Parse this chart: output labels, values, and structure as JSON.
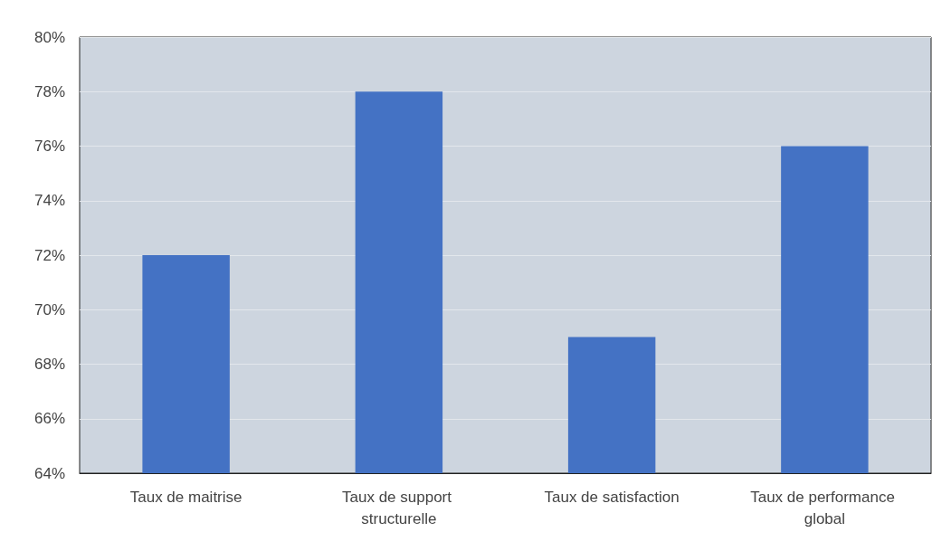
{
  "chart_data": {
    "type": "bar",
    "categories": [
      "Taux de maitrise",
      "Taux de support structurelle",
      "Taux de satisfaction",
      "Taux de performance global"
    ],
    "values": [
      72,
      78,
      69,
      76
    ],
    "color": "#4472c4",
    "ylim": [
      64,
      80
    ],
    "yticks": [
      {
        "value": 64,
        "label": "64%"
      },
      {
        "value": 66,
        "label": "66%"
      },
      {
        "value": 68,
        "label": "68%"
      },
      {
        "value": 70,
        "label": "70%"
      },
      {
        "value": 72,
        "label": "72%"
      },
      {
        "value": 74,
        "label": "74%"
      },
      {
        "value": 76,
        "label": "76%"
      },
      {
        "value": 78,
        "label": "78%"
      },
      {
        "value": 80,
        "label": "80%"
      }
    ],
    "grid": true
  }
}
